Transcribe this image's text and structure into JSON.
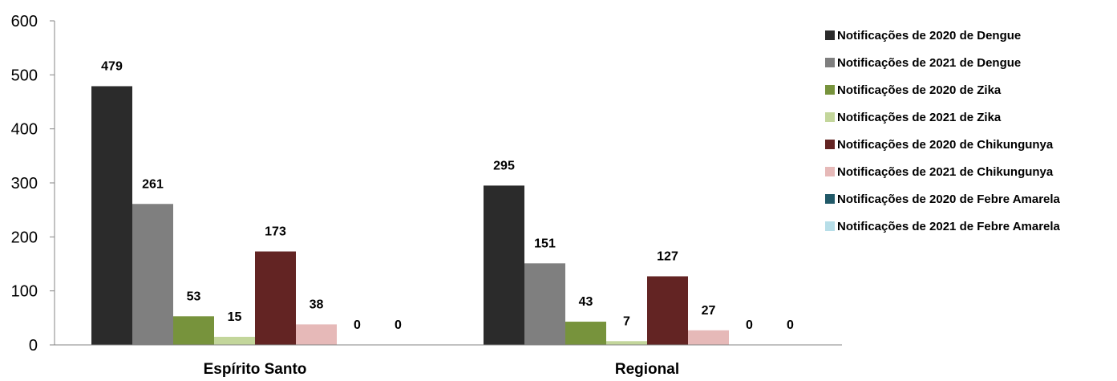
{
  "chart_data": {
    "type": "bar",
    "title": "",
    "xlabel": "",
    "ylabel": "",
    "categories": [
      "Espírito Santo",
      "Regional"
    ],
    "ylim": [
      0,
      600
    ],
    "yticks": [
      0,
      100,
      200,
      300,
      400,
      500,
      600
    ],
    "grid": false,
    "legend_position": "right",
    "series": [
      {
        "name": "Notificações de 2020 de Dengue",
        "color": "#2b2b2b",
        "values": [
          479,
          295
        ]
      },
      {
        "name": "Notificações de 2021 de Dengue",
        "color": "#7f7f7f",
        "values": [
          261,
          151
        ]
      },
      {
        "name": "Notificações de 2020 de Zika",
        "color": "#77933c",
        "values": [
          53,
          43
        ]
      },
      {
        "name": "Notificações de 2021 de Zika",
        "color": "#c3d69b",
        "values": [
          15,
          7
        ]
      },
      {
        "name": "Notificações de 2020 de Chikungunya",
        "color": "#632423",
        "values": [
          173,
          127
        ]
      },
      {
        "name": "Notificações de 2021 de Chikungunya",
        "color": "#e6b9b8",
        "values": [
          38,
          27
        ]
      },
      {
        "name": "Notificações de 2020 de Febre Amarela",
        "color": "#215968",
        "values": [
          0,
          0
        ]
      },
      {
        "name": "Notificações de 2021 de Febre Amarela",
        "color": "#b7dee8",
        "values": [
          0,
          0
        ]
      }
    ]
  }
}
